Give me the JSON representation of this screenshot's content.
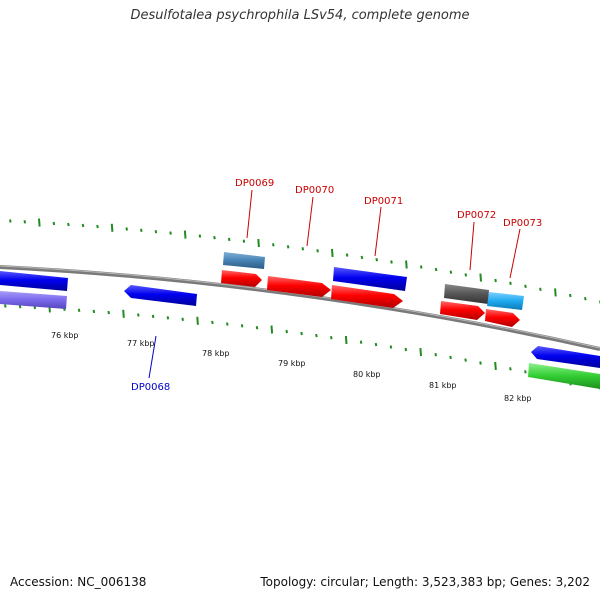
{
  "title": "Desulfotalea psychrophila LSv54, complete genome",
  "footer": {
    "accession": "Accession: NC_006138",
    "stats": "Topology: circular; Length: 3,523,383 bp; Genes: 3,202"
  },
  "scale_labels": [
    "76 kbp",
    "77 kbp",
    "78 kbp",
    "79 kbp",
    "80 kbp",
    "81 kbp",
    "82 kbp"
  ],
  "gene_labels": [
    {
      "id": "DP0068",
      "color": "#0000cc"
    },
    {
      "id": "DP0069",
      "color": "#cc0000"
    },
    {
      "id": "DP0070",
      "color": "#cc0000"
    },
    {
      "id": "DP0071",
      "color": "#cc0000"
    },
    {
      "id": "DP0072",
      "color": "#cc0000"
    },
    {
      "id": "DP0073",
      "color": "#cc0000"
    }
  ],
  "colors": {
    "backbone": "#808080",
    "ticks": "#228b22",
    "forward_gene": "#ff0000",
    "reverse_gene": "#0000ee",
    "light_blue_gene": "#1ea0e6",
    "steel_blue_gene": "#4682b4",
    "purple_gene": "#7b68ee",
    "grey_gene": "#555555",
    "green_gene": "#32cd32"
  }
}
